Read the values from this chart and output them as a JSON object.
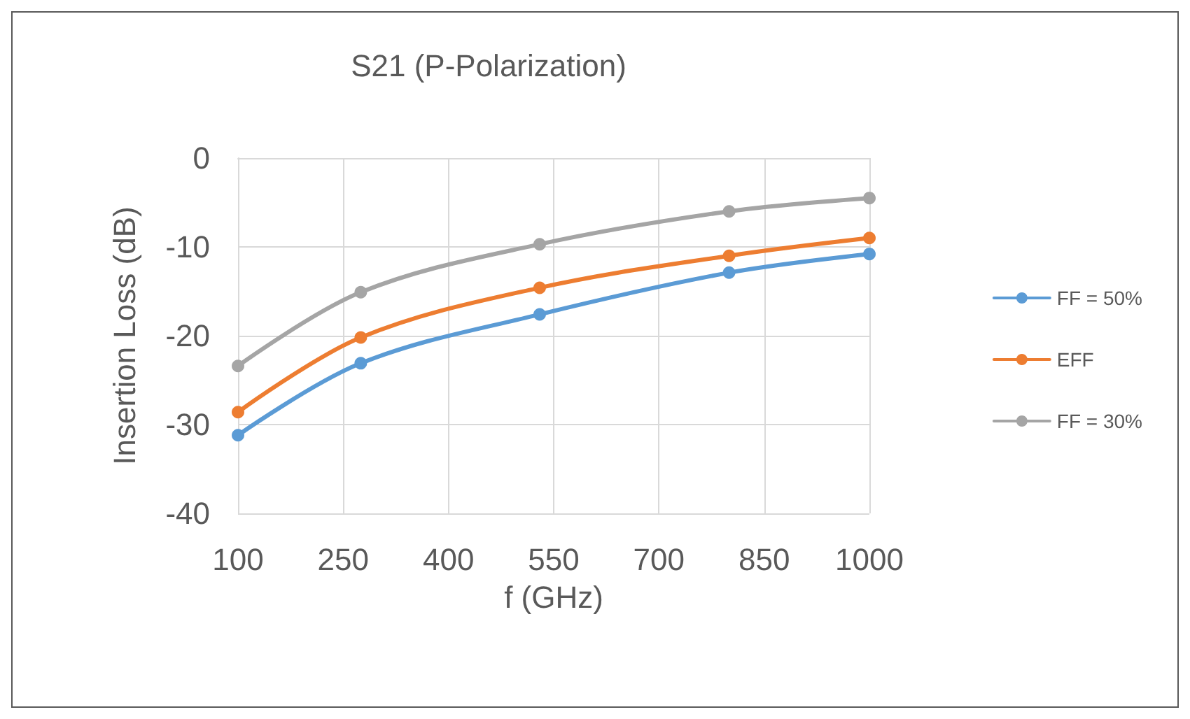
{
  "chart_data": {
    "type": "line",
    "title": "S21 (P-Polarization)",
    "xlabel": "f (GHz)",
    "ylabel": "Insertion Loss (dB)",
    "x": [
      100,
      275,
      530,
      800,
      1000
    ],
    "series": [
      {
        "name": "FF = 50%",
        "color": "#5b9bd5",
        "values": [
          -31.2,
          -23.1,
          -17.6,
          -12.9,
          -10.8
        ]
      },
      {
        "name": "EFF",
        "color": "#ed7d31",
        "values": [
          -28.6,
          -20.2,
          -14.6,
          -11.0,
          -9.0
        ]
      },
      {
        "name": "FF = 30%",
        "color": "#a5a5a5",
        "values": [
          -23.4,
          -15.1,
          -9.7,
          -6.0,
          -4.5
        ]
      }
    ],
    "xlim": [
      100,
      1000
    ],
    "xticks": [
      100,
      250,
      400,
      550,
      700,
      850,
      1000
    ],
    "ylim": [
      -40,
      0
    ],
    "yticks": [
      -40,
      -30,
      -20,
      -10,
      0
    ],
    "grid": true,
    "legend": "right",
    "marker": "circle",
    "line_style": "solid"
  }
}
